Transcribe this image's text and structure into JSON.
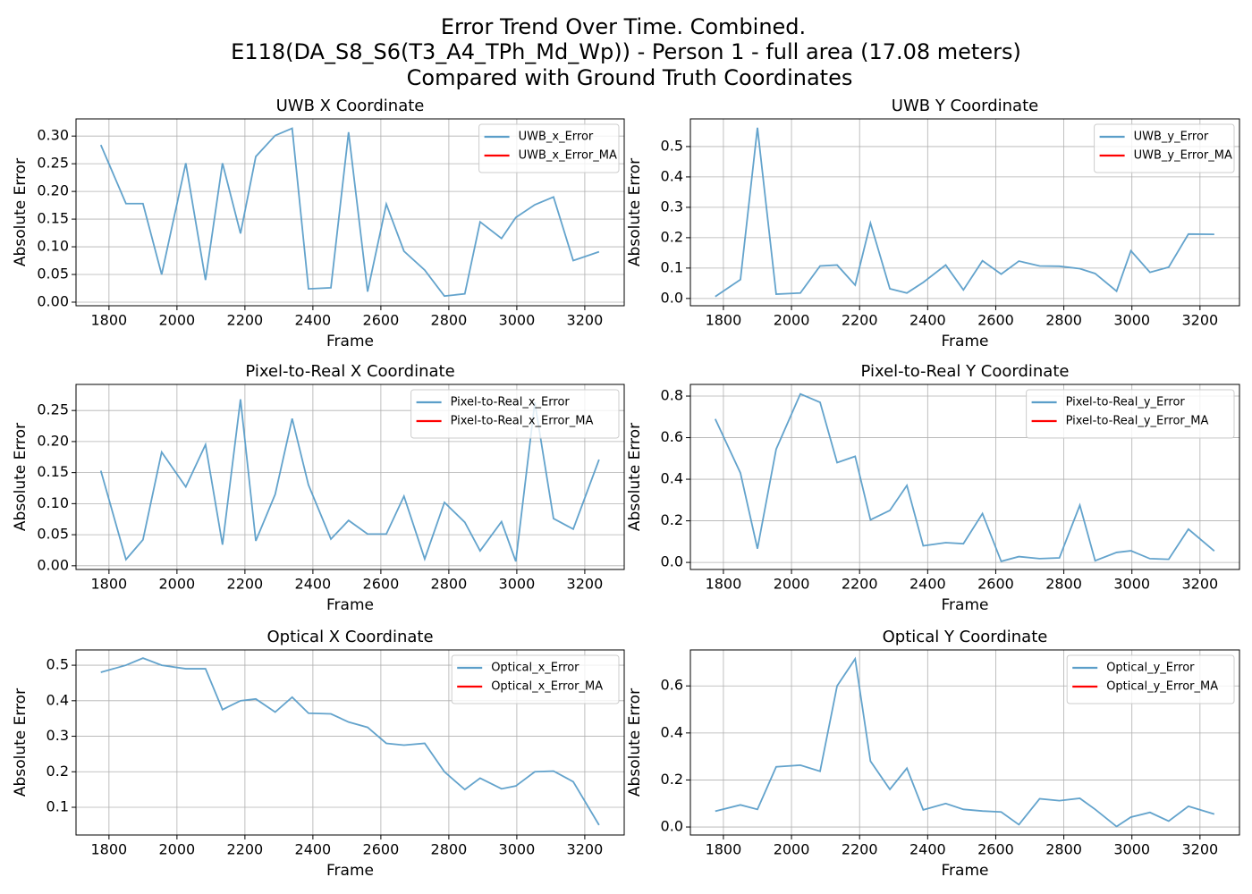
{
  "suptitle": [
    "Error Trend Over Time. Combined.",
    "E118(DA_S8_S6(T3_A4_TPh_Md_Wp)) - Person 1 - full area (17.08 meters)",
    "Compared with Ground Truth Coordinates"
  ],
  "chart_data": [
    {
      "type": "line",
      "title": "UWB X Coordinate",
      "xlabel": "Frame",
      "ylabel": "Absolute Error",
      "grid": true,
      "legend": "upper right",
      "x": [
        1776,
        1850,
        1900,
        1955,
        2026,
        2084,
        2134,
        2187,
        2232,
        2289,
        2339,
        2387,
        2453,
        2505,
        2561,
        2616,
        2668,
        2729,
        2787,
        2847,
        2892,
        2955,
        2997,
        3053,
        3108,
        3166,
        3242
      ],
      "xlim": [
        1703,
        3316
      ],
      "xticks": [
        1800,
        2000,
        2200,
        2400,
        2600,
        2800,
        3000,
        3200
      ],
      "ylim": [
        -0.0065,
        0.331
      ],
      "yticks": [
        {
          "value": 0,
          "label": "0.00"
        },
        {
          "value": 0.05,
          "label": "0.05"
        },
        {
          "value": 0.1,
          "label": "0.10"
        },
        {
          "value": 0.15,
          "label": "0.15"
        },
        {
          "value": 0.2,
          "label": "0.20"
        },
        {
          "value": 0.25,
          "label": "0.25"
        },
        {
          "value": 0.3,
          "label": "0.30"
        }
      ],
      "series": [
        {
          "name": "UWB_x_Error",
          "color": "#5b9ec9",
          "values": [
            0.284,
            0.178,
            0.178,
            0.05,
            0.251,
            0.04,
            0.251,
            0.124,
            0.263,
            0.301,
            0.314,
            0.024,
            0.026,
            0.307,
            0.019,
            0.177,
            0.092,
            0.058,
            0.011,
            0.015,
            0.145,
            0.115,
            0.153,
            0.176,
            0.19,
            0.075,
            0.091
          ]
        },
        {
          "name": "UWB_x_Error_MA",
          "color": "#ff0000",
          "values": [
            null,
            null,
            null,
            null,
            null,
            null,
            null,
            null,
            null,
            null,
            null,
            null,
            null,
            null,
            null,
            null,
            null,
            null,
            null,
            null,
            null,
            null,
            null,
            null,
            null,
            null,
            null
          ]
        }
      ]
    },
    {
      "type": "line",
      "title": "UWB Y Coordinate",
      "xlabel": "Frame",
      "ylabel": "Absolute Error",
      "grid": true,
      "legend": "upper right",
      "x": [
        1776,
        1850,
        1900,
        1955,
        2026,
        2084,
        2134,
        2187,
        2232,
        2289,
        2339,
        2387,
        2453,
        2505,
        2561,
        2616,
        2668,
        2729,
        2787,
        2847,
        2892,
        2955,
        2997,
        3053,
        3108,
        3166,
        3242
      ],
      "xlim": [
        1703,
        3316
      ],
      "xticks": [
        1800,
        2000,
        2200,
        2400,
        2600,
        2800,
        3000,
        3200
      ],
      "ylim": [
        -0.024,
        0.591
      ],
      "yticks": [
        {
          "value": 0,
          "label": "0.0"
        },
        0.1,
        0.2,
        0.3,
        0.4,
        0.5
      ],
      "series": [
        {
          "name": "UWB_y_Error",
          "color": "#5b9ec9",
          "values": [
            0.006,
            0.062,
            0.562,
            0.014,
            0.018,
            0.107,
            0.11,
            0.044,
            0.248,
            0.032,
            0.018,
            0.053,
            0.11,
            0.028,
            0.124,
            0.08,
            0.123,
            0.107,
            0.106,
            0.098,
            0.082,
            0.024,
            0.157,
            0.086,
            0.103,
            0.212,
            0.211
          ]
        },
        {
          "name": "UWB_y_Error_MA",
          "color": "#ff0000",
          "values": [
            null,
            null,
            null,
            null,
            null,
            null,
            null,
            null,
            null,
            null,
            null,
            null,
            null,
            null,
            null,
            null,
            null,
            null,
            null,
            null,
            null,
            null,
            null,
            null,
            null,
            null,
            null
          ]
        }
      ]
    },
    {
      "type": "line",
      "title": "Pixel-to-Real X Coordinate",
      "xlabel": "Frame",
      "ylabel": "Absolute Error",
      "grid": true,
      "legend": "upper right",
      "x": [
        1776,
        1850,
        1900,
        1955,
        2026,
        2084,
        2134,
        2187,
        2232,
        2289,
        2339,
        2387,
        2453,
        2505,
        2561,
        2616,
        2668,
        2729,
        2787,
        2847,
        2892,
        2955,
        2997,
        3053,
        3108,
        3166,
        3242
      ],
      "xlim": [
        1703,
        3316
      ],
      "xticks": [
        1800,
        2000,
        2200,
        2400,
        2600,
        2800,
        3000,
        3200
      ],
      "ylim": [
        -0.006,
        0.292
      ],
      "yticks": [
        {
          "value": 0,
          "label": "0.00"
        },
        {
          "value": 0.05,
          "label": "0.05"
        },
        {
          "value": 0.1,
          "label": "0.10"
        },
        {
          "value": 0.15,
          "label": "0.15"
        },
        {
          "value": 0.2,
          "label": "0.20"
        },
        {
          "value": 0.25,
          "label": "0.25"
        }
      ],
      "series": [
        {
          "name": "Pixel-to-Real_x_Error",
          "color": "#5b9ec9",
          "values": [
            0.153,
            0.01,
            0.042,
            0.183,
            0.127,
            0.195,
            0.034,
            0.268,
            0.04,
            0.115,
            0.237,
            0.13,
            0.043,
            0.073,
            0.051,
            0.051,
            0.112,
            0.011,
            0.102,
            0.07,
            0.024,
            0.071,
            0.007,
            0.263,
            0.076,
            0.059,
            0.171
          ]
        },
        {
          "name": "Pixel-to-Real_x_Error_MA",
          "color": "#ff0000",
          "values": [
            null,
            null,
            null,
            null,
            null,
            null,
            null,
            null,
            null,
            null,
            null,
            null,
            null,
            null,
            null,
            null,
            null,
            null,
            null,
            null,
            null,
            null,
            null,
            null,
            null,
            null,
            null
          ]
        }
      ]
    },
    {
      "type": "line",
      "title": "Pixel-to-Real Y Coordinate",
      "xlabel": "Frame",
      "ylabel": "Absolute Error",
      "grid": true,
      "legend": "upper right",
      "x": [
        1776,
        1850,
        1900,
        1955,
        2026,
        2084,
        2134,
        2187,
        2232,
        2289,
        2339,
        2387,
        2453,
        2505,
        2561,
        2616,
        2668,
        2729,
        2787,
        2847,
        2892,
        2955,
        2997,
        3053,
        3108,
        3166,
        3242
      ],
      "xlim": [
        1703,
        3316
      ],
      "xticks": [
        1800,
        2000,
        2200,
        2400,
        2600,
        2800,
        3000,
        3200
      ],
      "ylim": [
        -0.034,
        0.856
      ],
      "yticks": [
        {
          "value": 0,
          "label": "0.0"
        },
        0.2,
        0.4,
        0.6,
        0.8
      ],
      "series": [
        {
          "name": "Pixel-to-Real_y_Error",
          "color": "#5b9ec9",
          "values": [
            0.69,
            0.43,
            0.066,
            0.545,
            0.81,
            0.77,
            0.48,
            0.51,
            0.205,
            0.25,
            0.37,
            0.08,
            0.095,
            0.09,
            0.235,
            0.005,
            0.028,
            0.018,
            0.022,
            0.275,
            0.008,
            0.048,
            0.056,
            0.018,
            0.015,
            0.16,
            0.055
          ]
        },
        {
          "name": "Pixel-to-Real_y_Error_MA",
          "color": "#ff0000",
          "values": [
            null,
            null,
            null,
            null,
            null,
            null,
            null,
            null,
            null,
            null,
            null,
            null,
            null,
            null,
            null,
            null,
            null,
            null,
            null,
            null,
            null,
            null,
            null,
            null,
            null,
            null,
            null
          ]
        }
      ]
    },
    {
      "type": "line",
      "title": "Optical X Coordinate",
      "xlabel": "Frame",
      "ylabel": "Absolute Error",
      "grid": true,
      "legend": "upper right",
      "x": [
        1776,
        1850,
        1900,
        1955,
        2026,
        2084,
        2134,
        2187,
        2232,
        2289,
        2339,
        2387,
        2453,
        2505,
        2561,
        2616,
        2668,
        2729,
        2787,
        2847,
        2892,
        2955,
        2997,
        3053,
        3108,
        3166,
        3242
      ],
      "xlim": [
        1703,
        3316
      ],
      "xticks": [
        1800,
        2000,
        2200,
        2400,
        2600,
        2800,
        3000,
        3200
      ],
      "ylim": [
        0.022,
        0.543
      ],
      "yticks": [
        0.1,
        0.2,
        0.3,
        0.4,
        0.5
      ],
      "series": [
        {
          "name": "Optical_x_Error",
          "color": "#5b9ec9",
          "values": [
            0.48,
            0.5,
            0.52,
            0.5,
            0.49,
            0.49,
            0.375,
            0.4,
            0.405,
            0.368,
            0.41,
            0.365,
            0.363,
            0.34,
            0.325,
            0.28,
            0.275,
            0.28,
            0.2,
            0.15,
            0.182,
            0.152,
            0.16,
            0.2,
            0.202,
            0.172,
            0.05
          ]
        },
        {
          "name": "Optical_x_Error_MA",
          "color": "#ff0000",
          "values": [
            null,
            null,
            null,
            null,
            null,
            null,
            null,
            null,
            null,
            null,
            null,
            null,
            null,
            null,
            null,
            null,
            null,
            null,
            null,
            null,
            null,
            null,
            null,
            null,
            null,
            null,
            null
          ]
        }
      ]
    },
    {
      "type": "line",
      "title": "Optical Y Coordinate",
      "xlabel": "Frame",
      "ylabel": "Absolute Error",
      "grid": true,
      "legend": "upper right",
      "x": [
        1776,
        1850,
        1900,
        1955,
        2026,
        2084,
        2134,
        2187,
        2232,
        2289,
        2339,
        2387,
        2453,
        2505,
        2561,
        2616,
        2668,
        2729,
        2787,
        2847,
        2892,
        2955,
        2997,
        3053,
        3108,
        3166,
        3242
      ],
      "xlim": [
        1703,
        3316
      ],
      "xticks": [
        1800,
        2000,
        2200,
        2400,
        2600,
        2800,
        3000,
        3200
      ],
      "ylim": [
        -0.034,
        0.753
      ],
      "yticks": [
        {
          "value": 0,
          "label": "0.0"
        },
        0.2,
        0.4,
        0.6
      ],
      "series": [
        {
          "name": "Optical_y_Error",
          "color": "#5b9ec9",
          "values": [
            0.067,
            0.094,
            0.075,
            0.256,
            0.263,
            0.237,
            0.6,
            0.715,
            0.28,
            0.16,
            0.25,
            0.073,
            0.1,
            0.075,
            0.068,
            0.064,
            0.01,
            0.12,
            0.112,
            0.122,
            0.075,
            0.002,
            0.042,
            0.062,
            0.025,
            0.088,
            0.055
          ]
        },
        {
          "name": "Optical_y_Error_MA",
          "color": "#ff0000",
          "values": [
            null,
            null,
            null,
            null,
            null,
            null,
            null,
            null,
            null,
            null,
            null,
            null,
            null,
            null,
            null,
            null,
            null,
            null,
            null,
            null,
            null,
            null,
            null,
            null,
            null,
            null,
            null
          ]
        }
      ]
    }
  ]
}
